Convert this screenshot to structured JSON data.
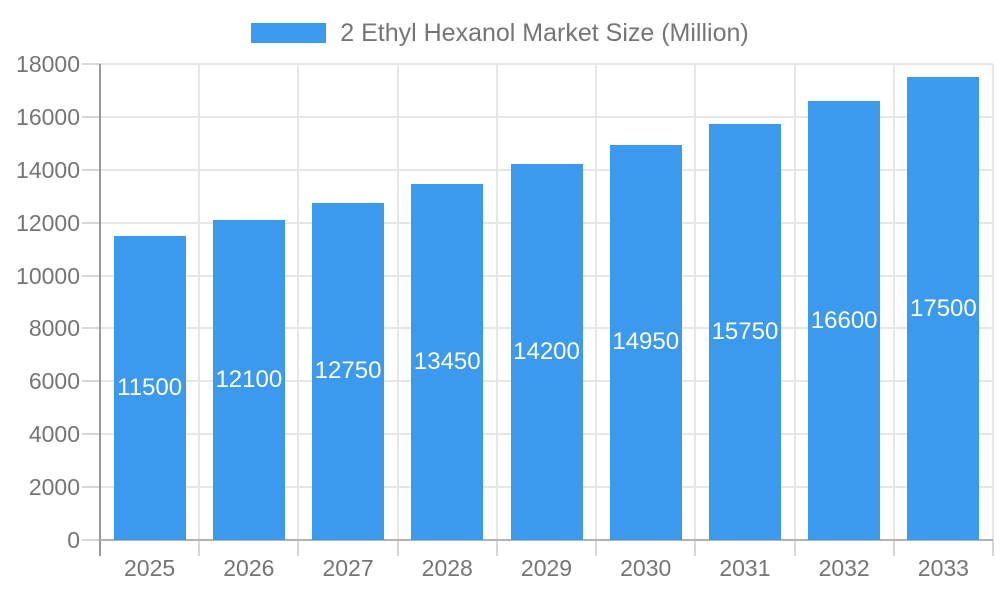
{
  "chart_data": {
    "type": "bar",
    "title": "2 Ethyl Hexanol Market Size (Million)",
    "legend": {
      "label": "2 Ethyl Hexanol Market Size (Million)",
      "position": "top"
    },
    "categories": [
      "2025",
      "2026",
      "2027",
      "2028",
      "2029",
      "2030",
      "2031",
      "2032",
      "2033"
    ],
    "series": [
      {
        "name": "2 Ethyl Hexanol Market Size (Million)",
        "values": [
          11500,
          12100,
          12750,
          13450,
          14200,
          14950,
          15750,
          16600,
          17500
        ]
      }
    ],
    "xlabel": "",
    "ylabel": "",
    "ylim": [
      0,
      18000
    ],
    "ytick_step": 2000,
    "yticks": [
      0,
      2000,
      4000,
      6000,
      8000,
      10000,
      12000,
      14000,
      16000,
      18000
    ],
    "grid": true,
    "bar_labels_inside": true
  },
  "colors": {
    "bar": "#3b99ee",
    "bar_label": "#ffffff",
    "axis_text": "#757575",
    "legend_text": "#757575",
    "grid_line": "#e6e6e6",
    "axis_line_y": "#999999",
    "axis_line_x": "#b3b3b3",
    "tick": "#d6d6d6",
    "background": "#ffffff"
  }
}
